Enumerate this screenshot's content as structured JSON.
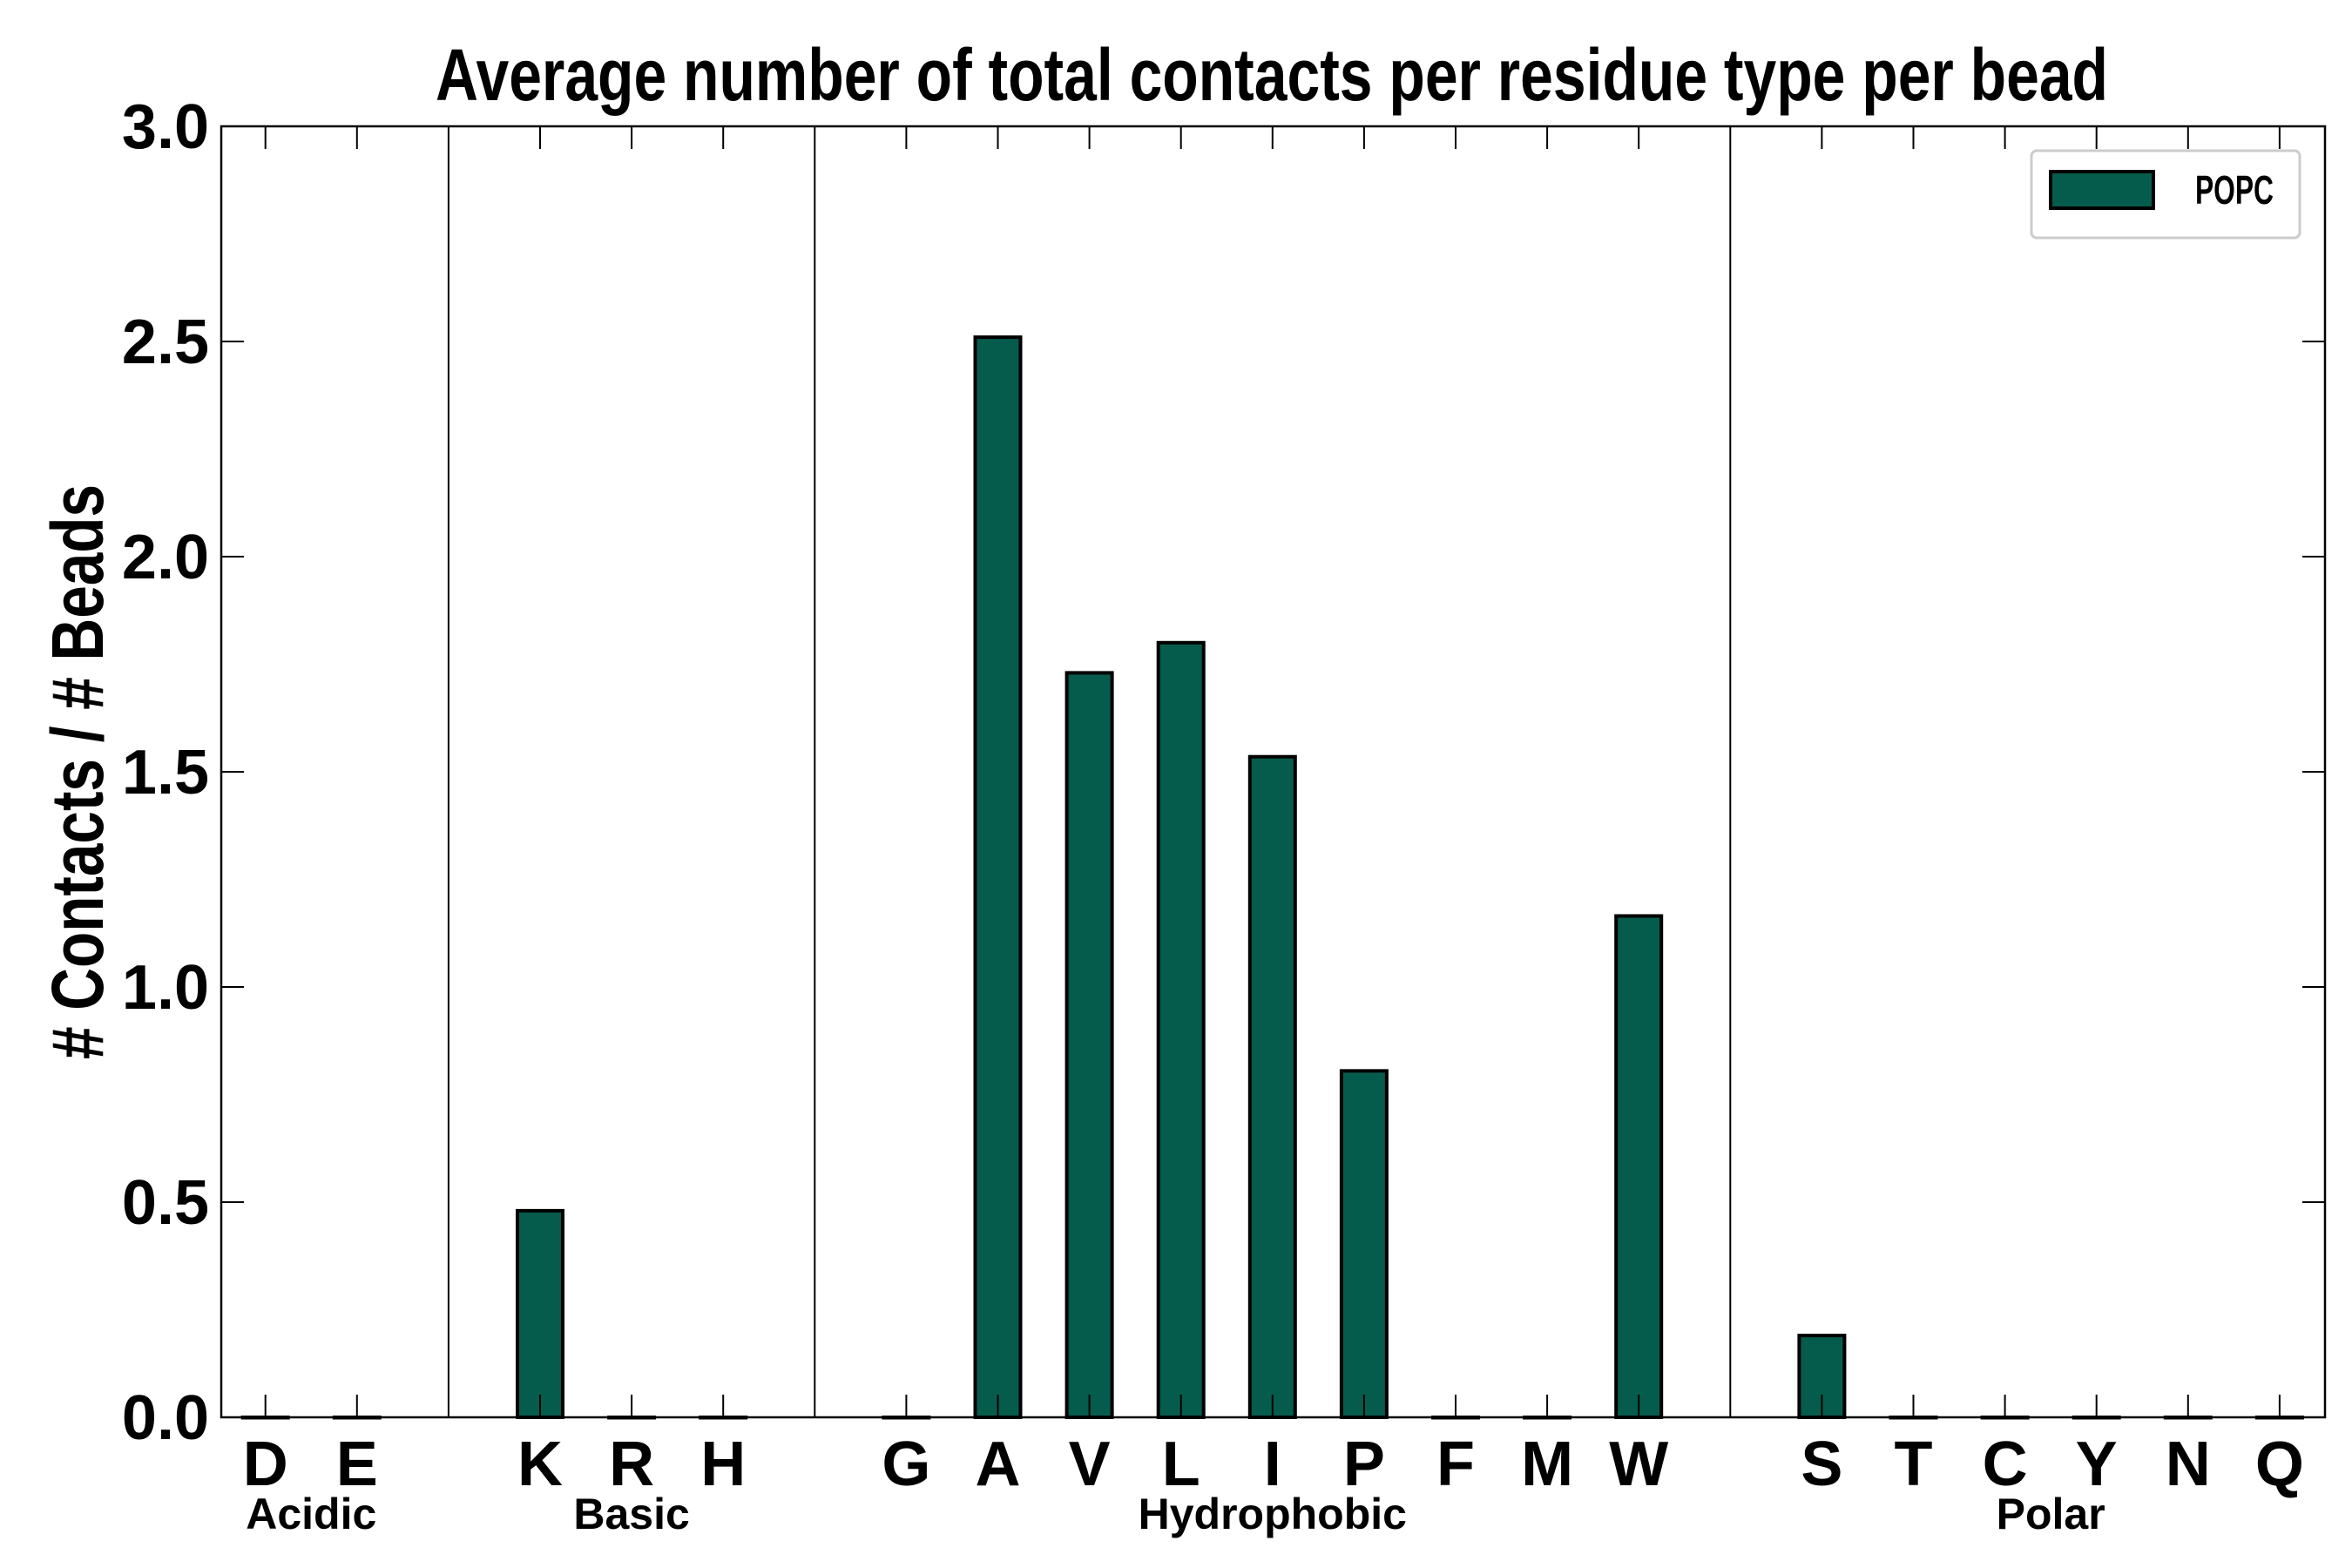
{
  "chart_data": {
    "type": "bar",
    "title": "Average number of total contacts per residue type per bead",
    "xlabel": "",
    "ylabel": "# Contacts / # Beads",
    "ylim": [
      0,
      3.0
    ],
    "yticks": [
      "0.0",
      "0.5",
      "1.0",
      "1.5",
      "2.0",
      "2.5",
      "3.0"
    ],
    "grid": false,
    "legend_position": "top-right",
    "categories": [
      "D",
      "E",
      "K",
      "R",
      "H",
      "G",
      "A",
      "V",
      "L",
      "I",
      "P",
      "F",
      "M",
      "W",
      "S",
      "T",
      "C",
      "Y",
      "N",
      "Q"
    ],
    "groups": [
      {
        "label": "Acidic",
        "members": [
          "D",
          "E"
        ]
      },
      {
        "label": "Basic",
        "members": [
          "K",
          "R",
          "H"
        ]
      },
      {
        "label": "Hydrophobic",
        "members": [
          "G",
          "A",
          "V",
          "L",
          "I",
          "P",
          "F",
          "M",
          "W"
        ]
      },
      {
        "label": "Polar",
        "members": [
          "S",
          "T",
          "C",
          "Y",
          "N",
          "Q"
        ]
      }
    ],
    "series": [
      {
        "name": "POPC",
        "color": "#065c4c",
        "values": [
          0,
          0,
          0.48,
          0,
          0,
          0,
          2.51,
          1.73,
          1.8,
          1.535,
          0.805,
          0,
          0,
          1.165,
          0.19,
          0,
          0,
          0,
          0,
          0
        ]
      }
    ]
  }
}
